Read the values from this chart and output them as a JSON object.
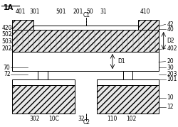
{
  "bg_color": "#f5f5f5",
  "title": "1A",
  "label_C1": "C1",
  "label_C2": "C2",
  "label_D1": "D1",
  "label_D2": "D2",
  "labels_top": [
    "401",
    "301",
    "501",
    "201",
    "50",
    "31",
    "410"
  ],
  "labels_left": [
    "420",
    "502",
    "503",
    "202",
    "70",
    "72"
  ],
  "labels_right": [
    "42",
    "40",
    "402",
    "20",
    "30",
    "203",
    "101",
    "10",
    "12"
  ],
  "labels_bottom": [
    "302",
    "10C",
    "32",
    "110",
    "102"
  ],
  "hatch_pattern": "////",
  "hatch_pattern2": "xxxx"
}
